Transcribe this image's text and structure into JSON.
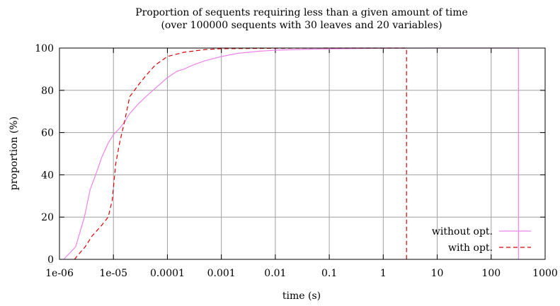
{
  "chart_data": {
    "type": "line",
    "title": "Proportion of sequents requiring less than a given amount of time",
    "subtitle": "(over 100000 sequents with 30 leaves and 20 variables)",
    "xlabel": "time (s)",
    "ylabel": "proportion (%)",
    "x_scale": "log",
    "xlim": [
      1e-06,
      1000
    ],
    "ylim": [
      0,
      100
    ],
    "x_ticks": [
      {
        "value": 1e-06,
        "label": "1e-06"
      },
      {
        "value": 1e-05,
        "label": "1e-05"
      },
      {
        "value": 0.0001,
        "label": "0.0001"
      },
      {
        "value": 0.001,
        "label": "0.001"
      },
      {
        "value": 0.01,
        "label": "0.01"
      },
      {
        "value": 0.1,
        "label": "0.1"
      },
      {
        "value": 1,
        "label": "1"
      },
      {
        "value": 10,
        "label": "10"
      },
      {
        "value": 100,
        "label": "100"
      },
      {
        "value": 1000,
        "label": "1000"
      }
    ],
    "y_ticks": [
      {
        "value": 0,
        "label": "0"
      },
      {
        "value": 20,
        "label": "20"
      },
      {
        "value": 40,
        "label": "40"
      },
      {
        "value": 60,
        "label": "60"
      },
      {
        "value": 80,
        "label": "80"
      },
      {
        "value": 100,
        "label": "100"
      }
    ],
    "grid": true,
    "legend_position": "bottom-right",
    "series": [
      {
        "name": "without opt.",
        "color": "#ee82ee",
        "dash": "solid",
        "points": [
          [
            1.2e-06,
            0
          ],
          [
            2e-06,
            6
          ],
          [
            2.9e-06,
            20
          ],
          [
            3.7e-06,
            33
          ],
          [
            5e-06,
            42
          ],
          [
            6e-06,
            48
          ],
          [
            8e-06,
            55
          ],
          [
            1e-05,
            59
          ],
          [
            1.3e-05,
            62
          ],
          [
            1.6e-05,
            65
          ],
          [
            2e-05,
            69
          ],
          [
            3e-05,
            74
          ],
          [
            4e-05,
            77
          ],
          [
            6e-05,
            81
          ],
          [
            0.0001,
            86
          ],
          [
            0.00015,
            89
          ],
          [
            0.0002,
            90
          ],
          [
            0.0003,
            92
          ],
          [
            0.0005,
            94
          ],
          [
            0.001,
            96
          ],
          [
            0.002,
            97.5
          ],
          [
            0.005,
            98.5
          ],
          [
            0.01,
            99
          ],
          [
            0.05,
            99.5
          ],
          [
            0.2,
            99.7
          ],
          [
            1,
            99.9
          ],
          [
            10,
            100
          ],
          [
            320,
            100
          ],
          [
            320,
            0
          ]
        ]
      },
      {
        "name": "with opt.",
        "color": "#dd0000",
        "dash": "dashed",
        "points": [
          [
            1.9e-06,
            0
          ],
          [
            2.2e-06,
            2
          ],
          [
            3e-06,
            6
          ],
          [
            4e-06,
            11
          ],
          [
            6e-06,
            16
          ],
          [
            8e-06,
            20
          ],
          [
            9.5e-06,
            28
          ],
          [
            1.1e-05,
            45
          ],
          [
            1.3e-05,
            55
          ],
          [
            1.6e-05,
            65
          ],
          [
            2e-05,
            77
          ],
          [
            3e-05,
            83
          ],
          [
            4e-05,
            87
          ],
          [
            6e-05,
            92
          ],
          [
            0.0001,
            96
          ],
          [
            0.0002,
            98
          ],
          [
            0.0005,
            99.3
          ],
          [
            0.001,
            99.7
          ],
          [
            0.01,
            99.9
          ],
          [
            0.1,
            100
          ],
          [
            2.7,
            100
          ],
          [
            2.7,
            0
          ]
        ]
      }
    ]
  }
}
